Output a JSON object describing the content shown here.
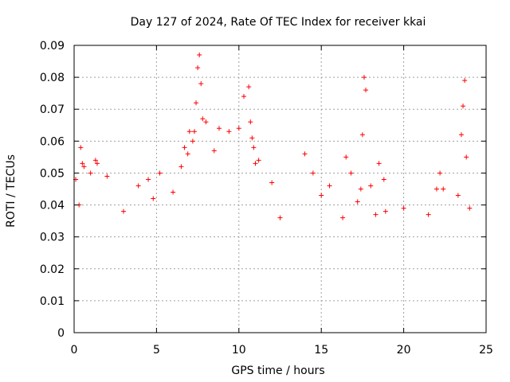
{
  "chart_data": {
    "type": "scatter",
    "title": "Day 127 of 2024, Rate Of TEC Index for receiver kkai",
    "xlabel": "GPS time / hours",
    "ylabel": "ROTI / TECUs",
    "xlim": [
      0,
      25
    ],
    "ylim": [
      0,
      0.09
    ],
    "x_ticks": [
      0,
      5,
      10,
      15,
      20,
      25
    ],
    "x_tick_labels": [
      "0",
      "5",
      "10",
      "15",
      "20",
      "25"
    ],
    "y_ticks": [
      0,
      0.01,
      0.02,
      0.03,
      0.04,
      0.05,
      0.06,
      0.07,
      0.08,
      0.09
    ],
    "y_tick_labels": [
      "0",
      "0.01",
      "0.02",
      "0.03",
      "0.04",
      "0.05",
      "0.06",
      "0.07",
      "0.08",
      "0.09"
    ],
    "grid": true,
    "marker": "+",
    "marker_color": "#ff0000",
    "series": [
      {
        "x": [
          0.1,
          0.3,
          0.4,
          0.5,
          0.6,
          1.0,
          1.3,
          1.4,
          2.0,
          3.0,
          3.9,
          4.5,
          4.8,
          5.2,
          6.0,
          6.5,
          6.7,
          6.9,
          7.0,
          7.2,
          7.3,
          7.4,
          7.5,
          7.6,
          7.7,
          7.8,
          8.0,
          8.5,
          8.8,
          9.4,
          10.0,
          10.3,
          10.6,
          10.7,
          10.8,
          10.9,
          11.0,
          11.2,
          12.0,
          12.5,
          14.0,
          14.5,
          15.0,
          15.5,
          16.3,
          16.5,
          16.8,
          17.2,
          17.4,
          17.5,
          17.6,
          17.7,
          18.0,
          18.3,
          18.5,
          18.8,
          18.9,
          20.0,
          21.5,
          22.0,
          22.2,
          22.4,
          23.3,
          23.5,
          23.6,
          23.7,
          23.8,
          24.0
        ],
        "y": [
          0.048,
          0.04,
          0.058,
          0.053,
          0.052,
          0.05,
          0.054,
          0.053,
          0.049,
          0.038,
          0.046,
          0.048,
          0.042,
          0.05,
          0.044,
          0.052,
          0.058,
          0.056,
          0.063,
          0.06,
          0.063,
          0.072,
          0.083,
          0.087,
          0.078,
          0.067,
          0.066,
          0.057,
          0.064,
          0.063,
          0.064,
          0.074,
          0.077,
          0.066,
          0.061,
          0.058,
          0.053,
          0.054,
          0.047,
          0.036,
          0.056,
          0.05,
          0.043,
          0.046,
          0.036,
          0.055,
          0.05,
          0.041,
          0.045,
          0.062,
          0.08,
          0.076,
          0.046,
          0.037,
          0.053,
          0.048,
          0.038,
          0.039,
          0.037,
          0.045,
          0.05,
          0.045,
          0.043,
          0.062,
          0.071,
          0.079,
          0.055,
          0.039
        ]
      }
    ]
  }
}
